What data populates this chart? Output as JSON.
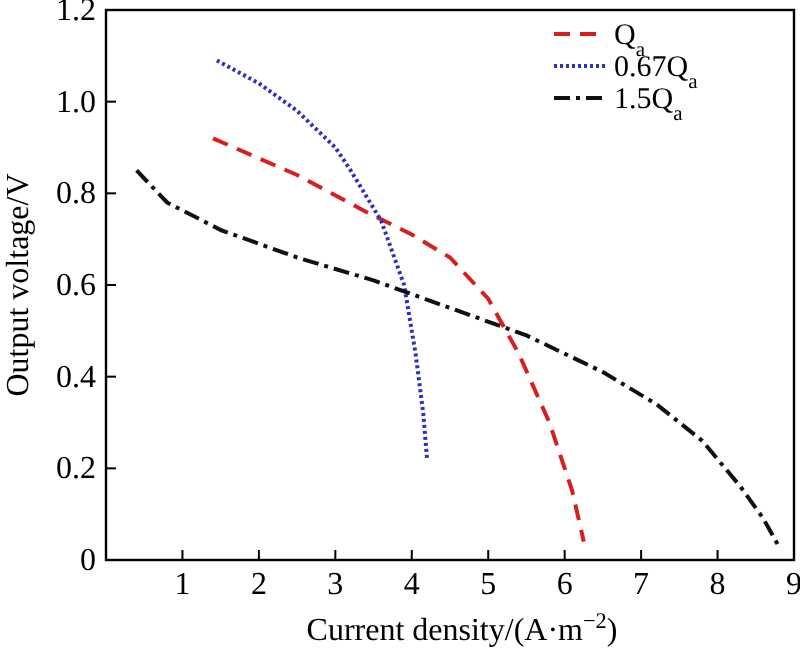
{
  "chart_data": {
    "type": "line",
    "xlabel": "Current density/(A·m$^{−2}$)",
    "ylabel": "Output voltage/V",
    "xlim": [
      0,
      9
    ],
    "ylim": [
      0,
      1.2
    ],
    "xticks": [
      1,
      2,
      3,
      4,
      5,
      6,
      7,
      8,
      9
    ],
    "yticks": [
      0,
      {
        "value": 0.2,
        "label": "0.2"
      },
      {
        "value": 0.4,
        "label": "0.4"
      },
      {
        "value": 0.6,
        "label": "0.6"
      },
      {
        "value": 0.8,
        "label": "0.8"
      },
      {
        "value": 1,
        "label": "1.0"
      },
      {
        "value": 1.2,
        "label": "1.2"
      }
    ],
    "legend": "top right",
    "grid": false,
    "series": [
      {
        "name": "Q$_{a}$",
        "color": "#d62020",
        "line_style": "dashed",
        "x": [
          1.4,
          2.5,
          3.4,
          4.0,
          4.5,
          5.0,
          5.4,
          5.8,
          6.1,
          6.25
        ],
        "values": [
          0.92,
          0.84,
          0.76,
          0.71,
          0.66,
          0.57,
          0.45,
          0.3,
          0.15,
          0.04
        ]
      },
      {
        "name": "0.67Q$_{a}$",
        "color": "#3030c0",
        "line_style": "dotted",
        "x": [
          1.45,
          2.0,
          2.5,
          3.0,
          3.2,
          3.6,
          3.9,
          4.05,
          4.15,
          4.2
        ],
        "values": [
          1.09,
          1.04,
          0.98,
          0.9,
          0.85,
          0.74,
          0.6,
          0.45,
          0.32,
          0.22
        ]
      },
      {
        "name": "1.5Q$_{a}$",
        "color": "#111111",
        "line_style": "dashdot",
        "x": [
          0.4,
          0.8,
          1.5,
          2.5,
          3.5,
          4.5,
          5.5,
          6.5,
          7.2,
          7.8,
          8.3,
          8.6,
          8.8
        ],
        "values": [
          0.85,
          0.78,
          0.72,
          0.66,
          0.61,
          0.55,
          0.49,
          0.41,
          0.34,
          0.26,
          0.16,
          0.09,
          0.03
        ]
      }
    ]
  }
}
